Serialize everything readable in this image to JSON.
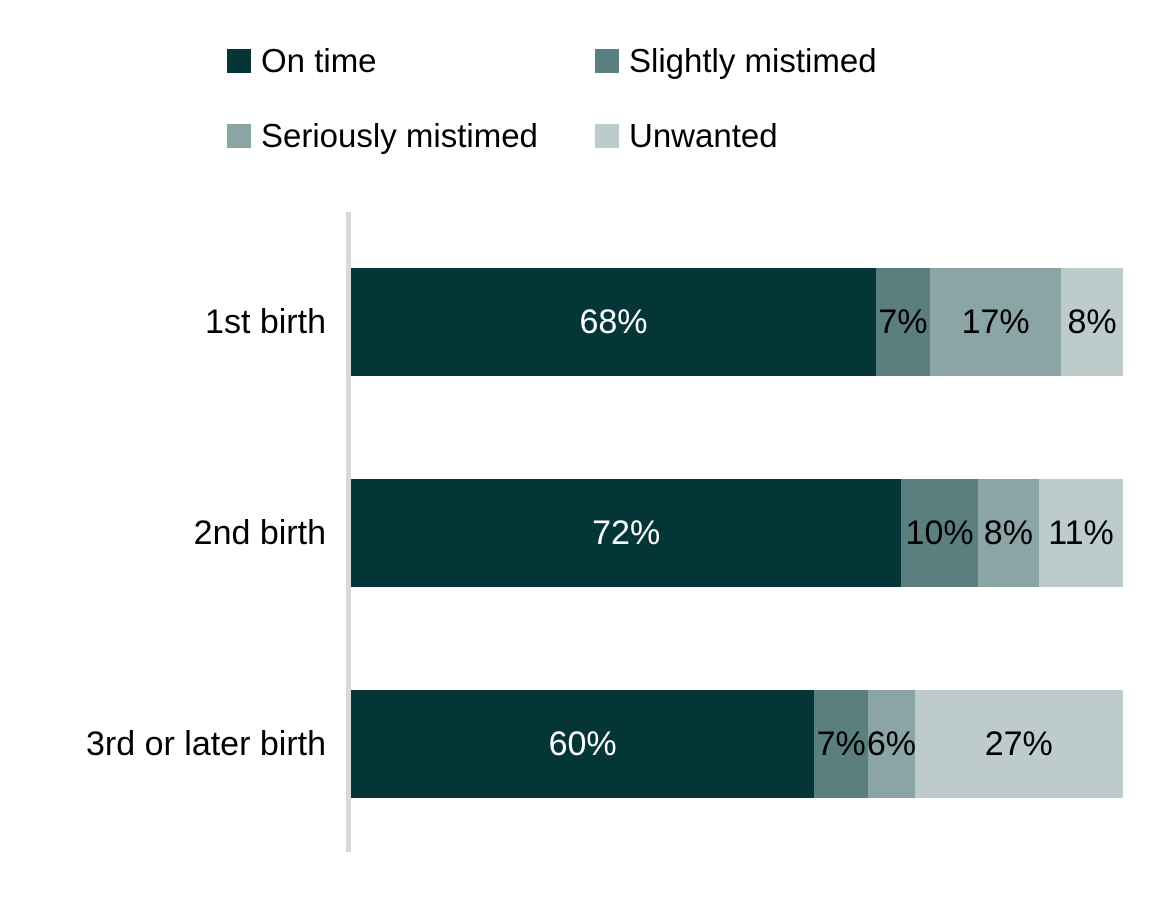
{
  "chart_data": {
    "type": "bar",
    "orientation": "horizontal",
    "stacked": true,
    "title": "",
    "xlabel": "",
    "ylabel": "",
    "xlim": [
      0,
      100
    ],
    "grid": false,
    "legend_position": "top",
    "axis_line_color": "#d9d9d9",
    "background": "#ffffff",
    "unit": "%",
    "categories": [
      "1st birth",
      "2nd birth",
      "3rd or later birth"
    ],
    "series": [
      {
        "name": "On time",
        "color": "#043638",
        "label_color": "#ffffff",
        "values": [
          68,
          72,
          60
        ]
      },
      {
        "name": "Slightly mistimed",
        "color": "#5b7f7f",
        "label_color": "#000000",
        "values": [
          7,
          10,
          7
        ]
      },
      {
        "name": "Seriously mistimed",
        "color": "#8ba4a5",
        "label_color": "#000000",
        "values": [
          17,
          8,
          6
        ]
      },
      {
        "name": "Unwanted",
        "color": "#bdcbca",
        "label_color": "#000000",
        "values": [
          8,
          11,
          27
        ]
      }
    ],
    "data_labels": [
      [
        "68%",
        "7%",
        "17%",
        "8%"
      ],
      [
        "72%",
        "10%",
        "8%",
        "11%"
      ],
      [
        "60%",
        "7%",
        "6%",
        "27%"
      ]
    ]
  }
}
